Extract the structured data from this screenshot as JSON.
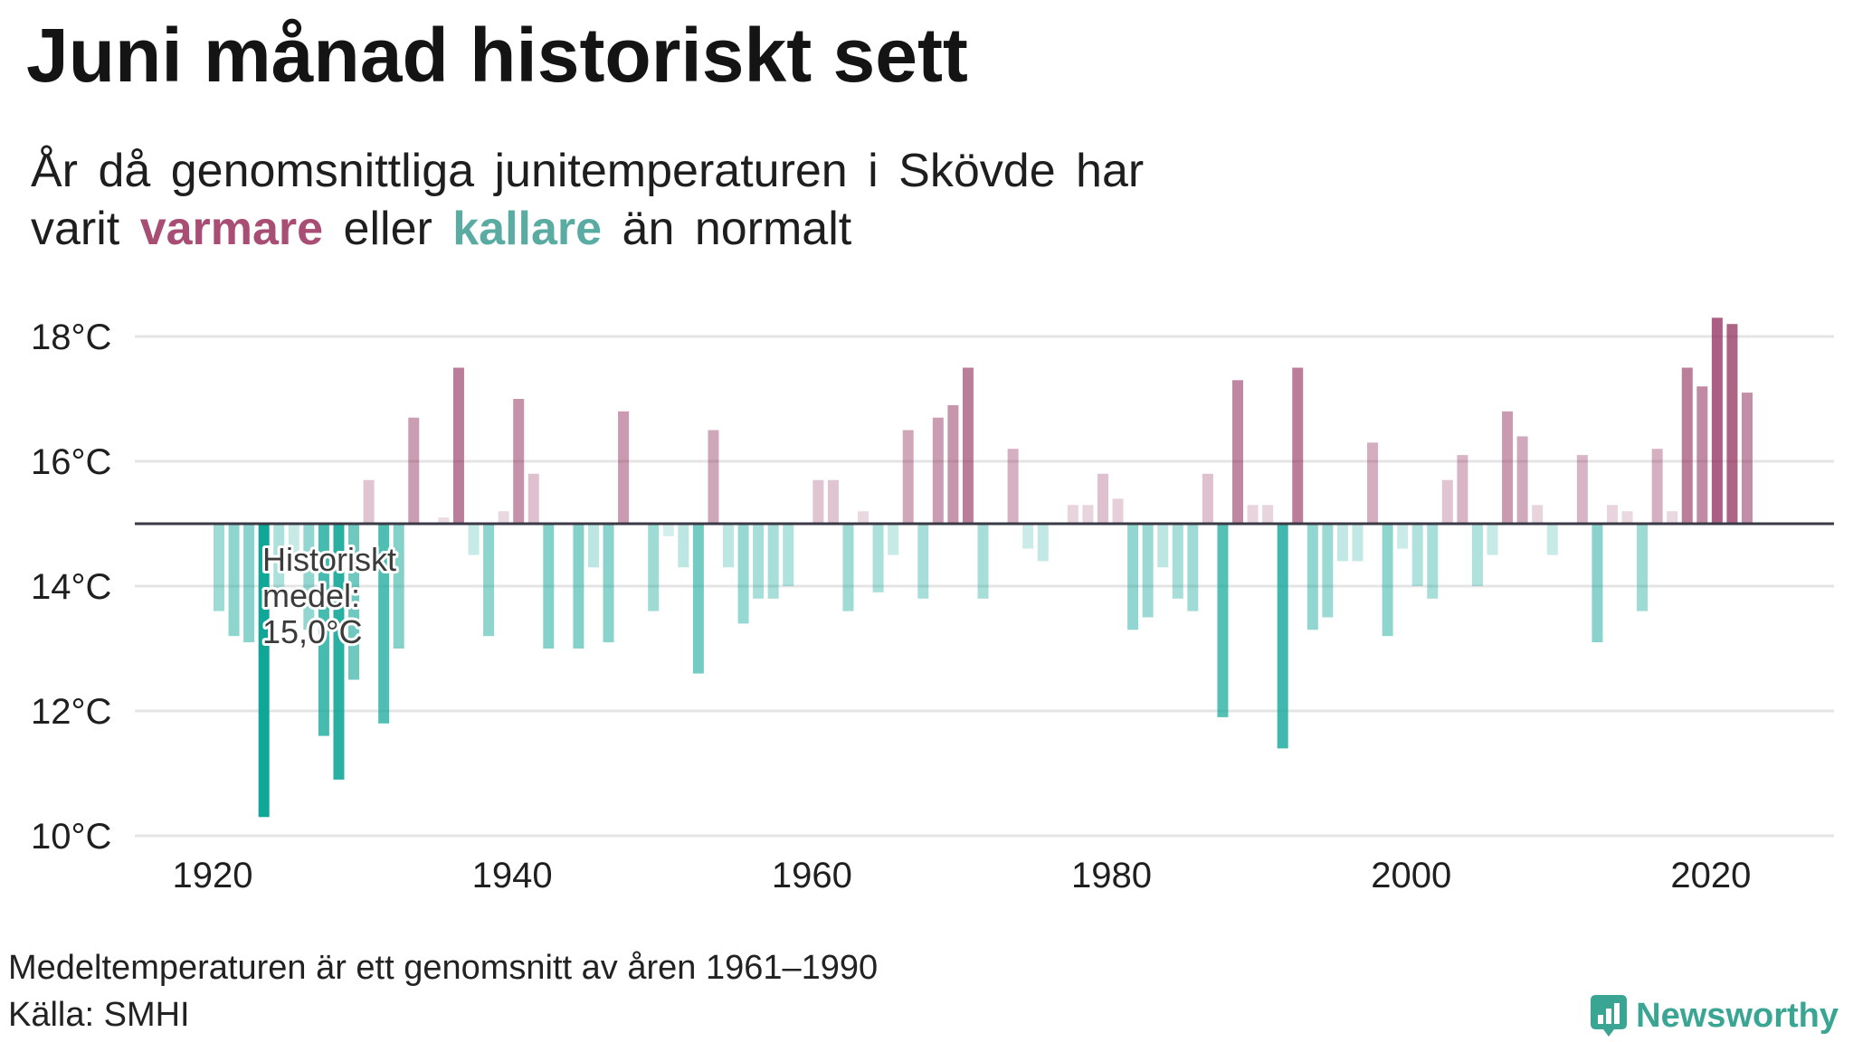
{
  "chart_data": {
    "type": "bar",
    "title": "Juni månad historiskt sett",
    "subtitle": {
      "line1": "År då genomsnittliga junitemperaturen i Skövde har",
      "line2": [
        "varit",
        "varmare",
        "eller",
        "kallare",
        "än normalt"
      ]
    },
    "years": [
      1920,
      1921,
      1922,
      1923,
      1924,
      1925,
      1926,
      1927,
      1928,
      1929,
      1930,
      1931,
      1932,
      1933,
      1934,
      1935,
      1936,
      1937,
      1938,
      1939,
      1940,
      1941,
      1942,
      1943,
      1944,
      1945,
      1946,
      1947,
      1948,
      1949,
      1950,
      1951,
      1952,
      1953,
      1954,
      1955,
      1956,
      1957,
      1958,
      1959,
      1960,
      1961,
      1962,
      1963,
      1964,
      1965,
      1966,
      1967,
      1968,
      1969,
      1970,
      1971,
      1972,
      1973,
      1974,
      1975,
      1976,
      1977,
      1978,
      1979,
      1980,
      1981,
      1982,
      1983,
      1984,
      1985,
      1986,
      1987,
      1988,
      1989,
      1990,
      1991,
      1992,
      1993,
      1994,
      1995,
      1996,
      1997,
      1998,
      1999,
      2000,
      2001,
      2002,
      2003,
      2004,
      2005,
      2006,
      2007,
      2008,
      2009,
      2010,
      2011,
      2012,
      2013,
      2014,
      2015,
      2016,
      2017,
      2018,
      2019,
      2020,
      2021,
      2022
    ],
    "values": [
      13.6,
      13.2,
      13.1,
      10.3,
      13.9,
      14.5,
      13.3,
      11.6,
      10.9,
      12.5,
      15.7,
      11.8,
      13.0,
      16.7,
      15.0,
      15.1,
      17.5,
      14.5,
      13.2,
      15.2,
      17.0,
      15.8,
      13.0,
      15.0,
      13.0,
      14.3,
      13.1,
      16.8,
      15.0,
      13.6,
      14.8,
      14.3,
      12.6,
      16.5,
      14.3,
      13.4,
      13.8,
      13.8,
      14.0,
      15.0,
      15.7,
      15.7,
      13.6,
      15.2,
      13.9,
      14.5,
      16.5,
      13.8,
      16.7,
      16.9,
      17.5,
      13.8,
      15.0,
      16.2,
      14.6,
      14.4,
      15.0,
      15.3,
      15.3,
      15.8,
      15.4,
      13.3,
      13.5,
      14.3,
      13.8,
      13.6,
      15.8,
      11.9,
      17.3,
      15.3,
      15.3,
      11.4,
      17.5,
      13.3,
      13.5,
      14.4,
      14.4,
      16.3,
      13.2,
      14.6,
      14.0,
      13.8,
      15.7,
      16.1,
      14.0,
      14.5,
      16.8,
      16.4,
      15.3,
      14.5,
      15.0,
      16.1,
      13.1,
      15.3,
      15.2,
      13.6,
      16.2,
      15.2,
      17.5,
      17.2,
      18.3,
      18.2,
      17.1
    ],
    "baseline": 15.0,
    "ylim": [
      10,
      18.5
    ],
    "y_ticks": [
      10,
      12,
      14,
      16,
      18
    ],
    "y_tick_labels": [
      "10°C",
      "12°C",
      "14°C",
      "16°C",
      "18°C"
    ],
    "x_ticks": [
      1920,
      1940,
      1960,
      1980,
      2000,
      2020
    ],
    "x_tick_labels": [
      "1920",
      "1940",
      "1960",
      "1980",
      "2000",
      "2020"
    ],
    "annotation": [
      "Historiskt",
      "medel:",
      "15,0°C"
    ],
    "grid": true
  },
  "footer": {
    "note": "Medeltemperaturen är ett genomsnitt av åren 1961–1990",
    "source": "Källa: SMHI"
  },
  "logo": {
    "text": "Newsworthy",
    "icon": "bar-chart-bubble-icon"
  },
  "colors": {
    "warm": "#8e2a58",
    "cold": "#10a698",
    "warm_text": "#a84d74",
    "cold_text": "#5aaca2",
    "baseline": "#3a3a46",
    "grid": "#e4e4e4",
    "logo": "#3aa593"
  }
}
